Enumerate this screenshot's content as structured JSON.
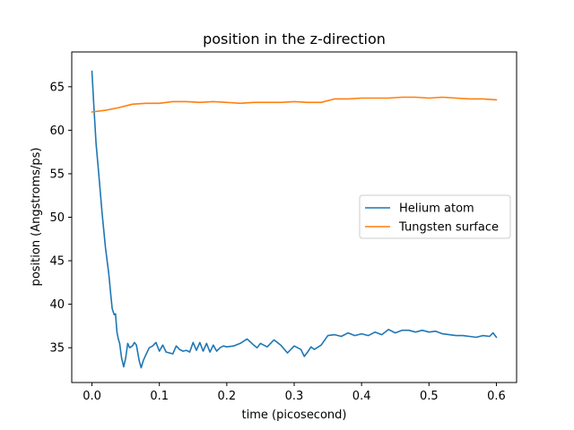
{
  "chart_data": {
    "type": "line",
    "title": "position in the z-direction",
    "xlabel": "time (picosecond)",
    "ylabel": "position (Angstroms/ps)",
    "xlim": [
      -0.03,
      0.63
    ],
    "ylim": [
      31,
      69
    ],
    "xticks": [
      0.0,
      0.1,
      0.2,
      0.3,
      0.4,
      0.5,
      0.6
    ],
    "xtick_labels": [
      "0.0",
      "0.1",
      "0.2",
      "0.3",
      "0.4",
      "0.5",
      "0.6"
    ],
    "yticks": [
      35,
      40,
      45,
      50,
      55,
      60,
      65
    ],
    "ytick_labels": [
      "35",
      "40",
      "45",
      "50",
      "55",
      "60",
      "65"
    ],
    "grid": false,
    "legend_position": "center-right",
    "series": [
      {
        "name": "Helium atom",
        "color": "#1f77b4",
        "x": [
          0.0,
          0.003,
          0.006,
          0.01,
          0.015,
          0.02,
          0.025,
          0.028,
          0.03,
          0.033,
          0.035,
          0.037,
          0.039,
          0.041,
          0.044,
          0.047,
          0.05,
          0.053,
          0.056,
          0.06,
          0.063,
          0.066,
          0.07,
          0.073,
          0.076,
          0.08,
          0.085,
          0.09,
          0.095,
          0.1,
          0.105,
          0.11,
          0.115,
          0.12,
          0.125,
          0.13,
          0.135,
          0.14,
          0.145,
          0.15,
          0.155,
          0.16,
          0.165,
          0.17,
          0.175,
          0.18,
          0.185,
          0.19,
          0.195,
          0.2,
          0.21,
          0.22,
          0.23,
          0.24,
          0.245,
          0.25,
          0.26,
          0.27,
          0.28,
          0.29,
          0.3,
          0.31,
          0.315,
          0.32,
          0.325,
          0.33,
          0.34,
          0.35,
          0.36,
          0.37,
          0.38,
          0.39,
          0.4,
          0.41,
          0.42,
          0.43,
          0.44,
          0.45,
          0.46,
          0.47,
          0.48,
          0.49,
          0.5,
          0.51,
          0.52,
          0.53,
          0.54,
          0.55,
          0.56,
          0.57,
          0.58,
          0.59,
          0.595,
          0.6
        ],
        "y": [
          66.8,
          62.5,
          58.5,
          55.0,
          50.5,
          46.5,
          43.5,
          41.0,
          39.5,
          38.8,
          38.9,
          36.8,
          36.0,
          35.5,
          33.8,
          32.8,
          33.8,
          35.5,
          35.0,
          35.2,
          35.6,
          35.3,
          33.5,
          32.7,
          33.5,
          34.2,
          35.0,
          35.2,
          35.6,
          34.6,
          35.3,
          34.5,
          34.4,
          34.3,
          35.2,
          34.8,
          34.6,
          34.7,
          34.5,
          35.6,
          34.7,
          35.6,
          34.6,
          35.5,
          34.5,
          35.3,
          34.6,
          35.0,
          35.2,
          35.1,
          35.2,
          35.5,
          36.0,
          35.3,
          35.0,
          35.5,
          35.1,
          35.9,
          35.3,
          34.4,
          35.2,
          34.8,
          34.0,
          34.5,
          35.1,
          34.8,
          35.3,
          36.4,
          36.5,
          36.3,
          36.7,
          36.4,
          36.6,
          36.4,
          36.8,
          36.5,
          37.1,
          36.7,
          37.0,
          37.0,
          36.8,
          37.0,
          36.8,
          36.9,
          36.6,
          36.5,
          36.4,
          36.4,
          36.3,
          36.2,
          36.4,
          36.3,
          36.7,
          36.2
        ]
      },
      {
        "name": "Tungsten surface",
        "color": "#ff7f0e",
        "x": [
          0.0,
          0.02,
          0.04,
          0.06,
          0.08,
          0.1,
          0.12,
          0.14,
          0.16,
          0.18,
          0.2,
          0.22,
          0.24,
          0.26,
          0.28,
          0.3,
          0.32,
          0.34,
          0.36,
          0.38,
          0.4,
          0.42,
          0.44,
          0.46,
          0.48,
          0.5,
          0.52,
          0.54,
          0.56,
          0.58,
          0.6
        ],
        "y": [
          62.1,
          62.3,
          62.6,
          63.0,
          63.1,
          63.1,
          63.3,
          63.3,
          63.2,
          63.3,
          63.2,
          63.1,
          63.2,
          63.2,
          63.2,
          63.3,
          63.2,
          63.2,
          63.6,
          63.6,
          63.7,
          63.7,
          63.7,
          63.8,
          63.8,
          63.7,
          63.8,
          63.7,
          63.6,
          63.6,
          63.5
        ]
      }
    ]
  }
}
